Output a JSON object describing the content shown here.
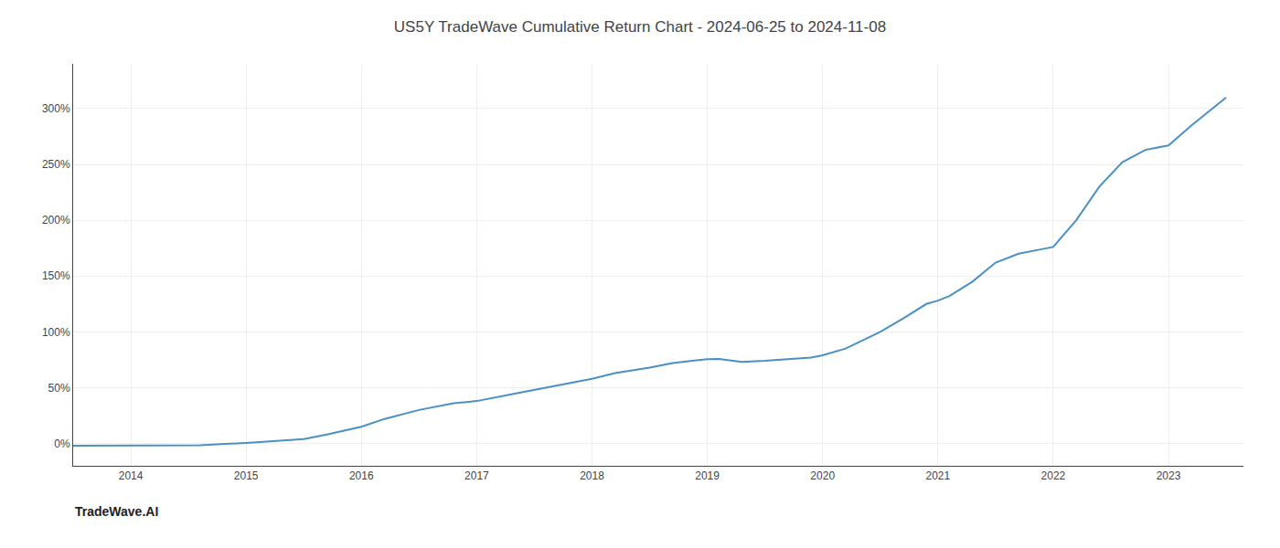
{
  "chart_data": {
    "type": "line",
    "title": "US5Y TradeWave Cumulative Return Chart - 2024-06-25 to 2024-11-08",
    "annotations": [
      "TradeWave.AI"
    ],
    "x": [
      2013.5,
      2014.0,
      2014.3,
      2014.6,
      2015.0,
      2015.2,
      2015.5,
      2015.7,
      2016.0,
      2016.2,
      2016.5,
      2016.8,
      2017.0,
      2017.3,
      2017.6,
      2017.9,
      2018.0,
      2018.2,
      2018.5,
      2018.7,
      2018.9,
      2019.0,
      2019.1,
      2019.3,
      2019.5,
      2019.7,
      2019.9,
      2020.0,
      2020.2,
      2020.5,
      2020.7,
      2020.9,
      2021.0,
      2021.1,
      2021.3,
      2021.5,
      2021.7,
      2021.9,
      2022.0,
      2022.2,
      2022.4,
      2022.6,
      2022.8,
      2023.0,
      2023.2,
      2023.5
    ],
    "values": [
      -2.0,
      -2.0,
      -2.0,
      -1.5,
      0.5,
      2.0,
      4.0,
      8.0,
      15.0,
      22.0,
      30.0,
      36.0,
      38.0,
      44.0,
      50.0,
      56.0,
      58.0,
      63.0,
      68.0,
      72.0,
      74.0,
      75.5,
      75.8,
      73.0,
      74.0,
      75.5,
      77.0,
      79.0,
      85.0,
      100.0,
      112.0,
      125.0,
      128.0,
      132.0,
      145.0,
      162.0,
      170.0,
      174.0,
      176.0,
      200.0,
      230.0,
      252.0,
      263.0,
      267.0,
      285.0,
      310.0
    ],
    "color": "#4a90c4",
    "xlim": [
      2013.5,
      2023.65
    ],
    "xticks": [
      2014,
      2015,
      2016,
      2017,
      2018,
      2019,
      2020,
      2021,
      2022,
      2023
    ],
    "ylim": [
      -20,
      340
    ],
    "yticks": [
      {
        "value": 0,
        "label": "0%"
      },
      {
        "value": 50,
        "label": "50%"
      },
      {
        "value": 100,
        "label": "100%"
      },
      {
        "value": 150,
        "label": "150%"
      },
      {
        "value": 200,
        "label": "200%"
      },
      {
        "value": 250,
        "label": "250%"
      },
      {
        "value": 300,
        "label": "300%"
      }
    ],
    "grid": true
  }
}
